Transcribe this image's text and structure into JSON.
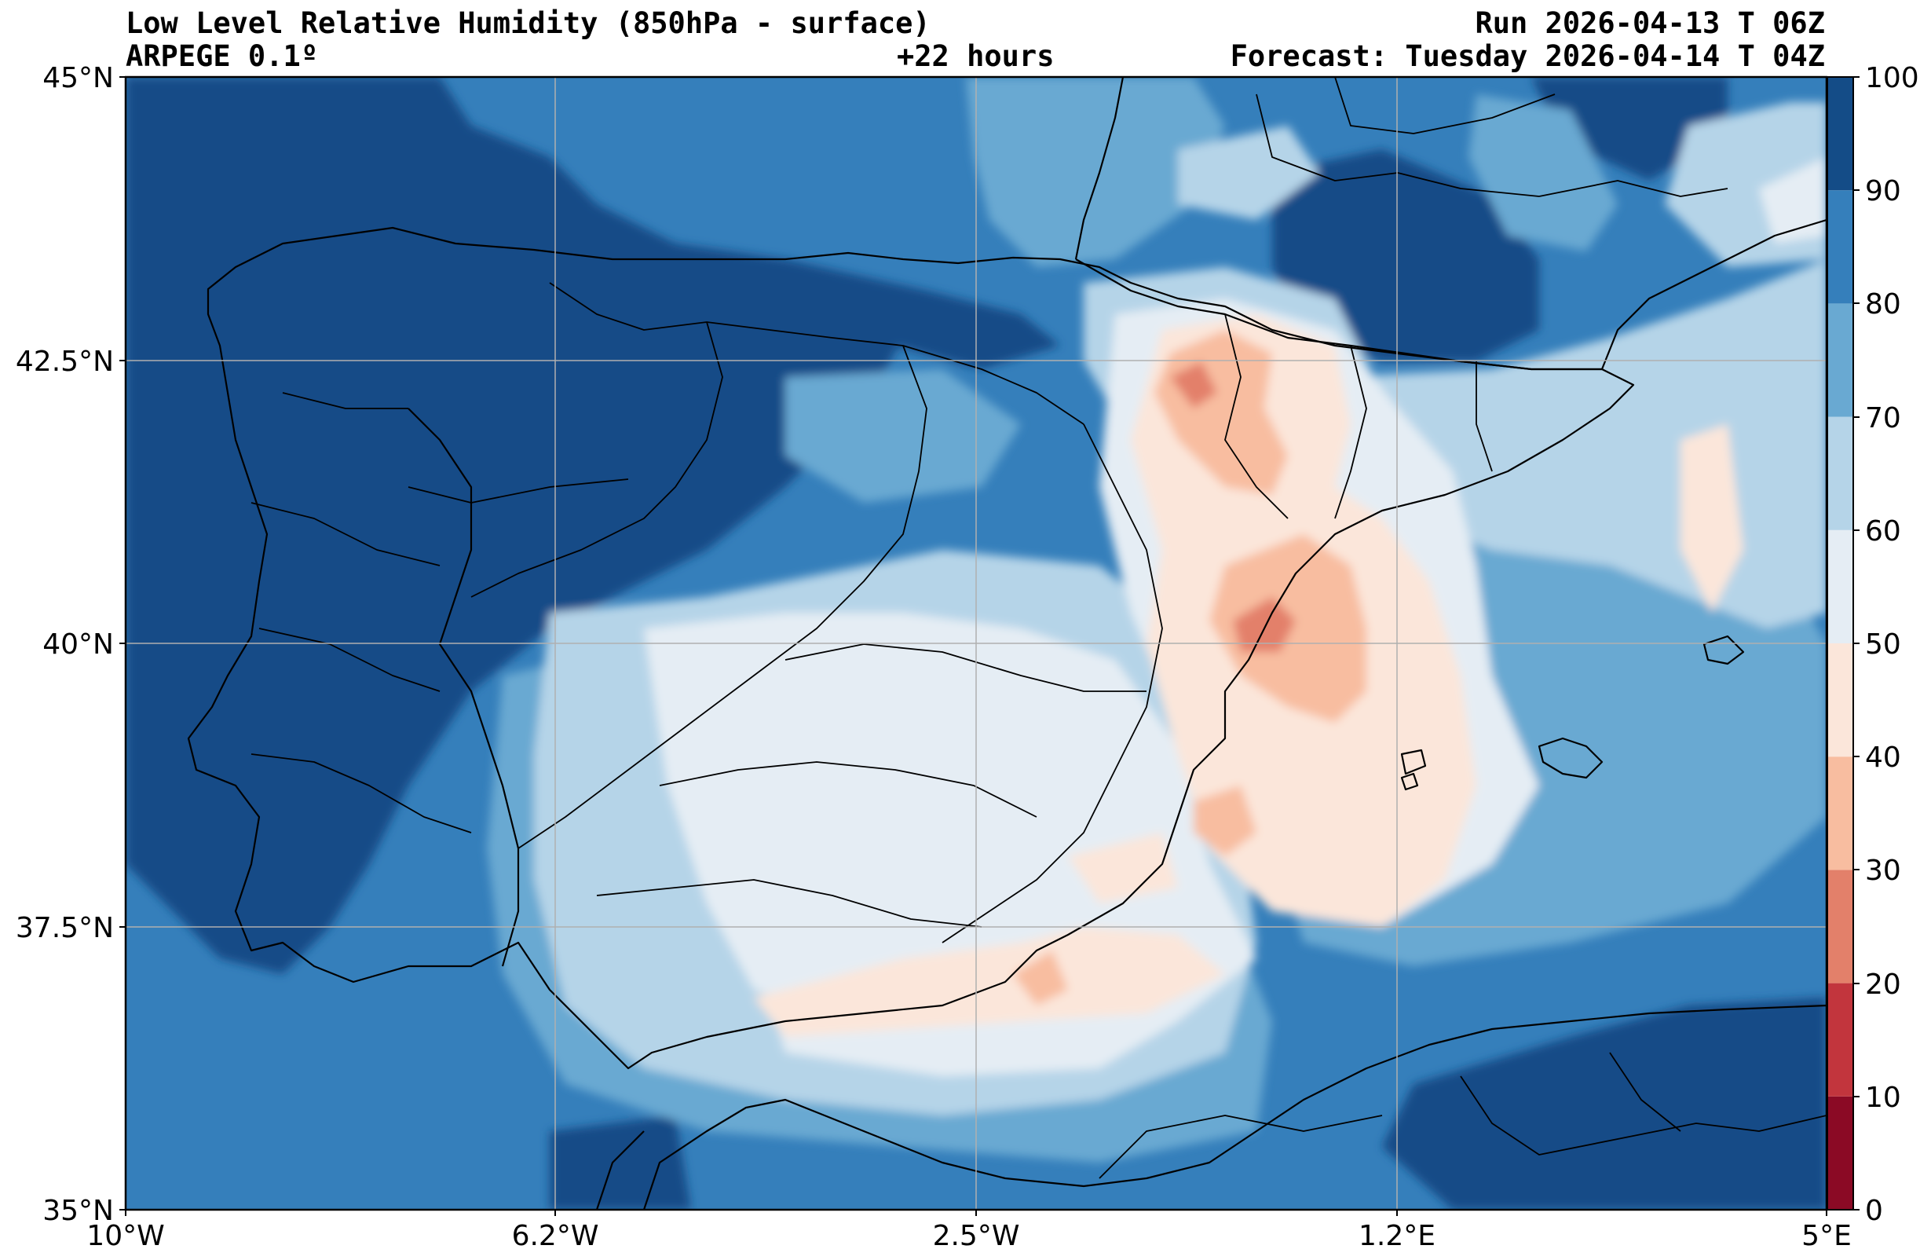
{
  "header": {
    "title": "Low Level Relative Humidity (850hPa - surface)",
    "model": "ARPEGE 0.1º",
    "lead_time": "+22 hours",
    "run": "Run 2026-04-13 T 06Z",
    "forecast": "Forecast: Tuesday 2026-04-14 T 04Z"
  },
  "map": {
    "variable": "relative humidity (%)",
    "extent": {
      "lon": [
        -10,
        5
      ],
      "lat": [
        35,
        45
      ]
    },
    "grid": true,
    "lon_ticks": [
      "10°W",
      "6.2°W",
      "2.5°W",
      "1.2°E",
      "5°E"
    ],
    "lat_ticks": [
      "45°N",
      "42.5°N",
      "40°N",
      "37.5°N",
      "35°N"
    ],
    "features": [
      "coastlines",
      "country-borders",
      "province-borders"
    ]
  },
  "colorbar": {
    "position": "right",
    "ticks": [
      "100",
      "90",
      "80",
      "70",
      "60",
      "50",
      "40",
      "30",
      "20",
      "10",
      "0"
    ],
    "bins": [
      {
        "range": [
          0,
          10
        ],
        "color": "#8b0a25"
      },
      {
        "range": [
          10,
          20
        ],
        "color": "#c2353d"
      },
      {
        "range": [
          20,
          30
        ],
        "color": "#e3806a"
      },
      {
        "range": [
          30,
          40
        ],
        "color": "#f8bda0"
      },
      {
        "range": [
          40,
          50
        ],
        "color": "#fbe6da"
      },
      {
        "range": [
          50,
          60
        ],
        "color": "#e5edf4"
      },
      {
        "range": [
          60,
          70
        ],
        "color": "#b5d4e8"
      },
      {
        "range": [
          70,
          80
        ],
        "color": "#69a9d2"
      },
      {
        "range": [
          80,
          90
        ],
        "color": "#357fbb"
      },
      {
        "range": [
          90,
          100
        ],
        "color": "#144c87"
      }
    ]
  }
}
